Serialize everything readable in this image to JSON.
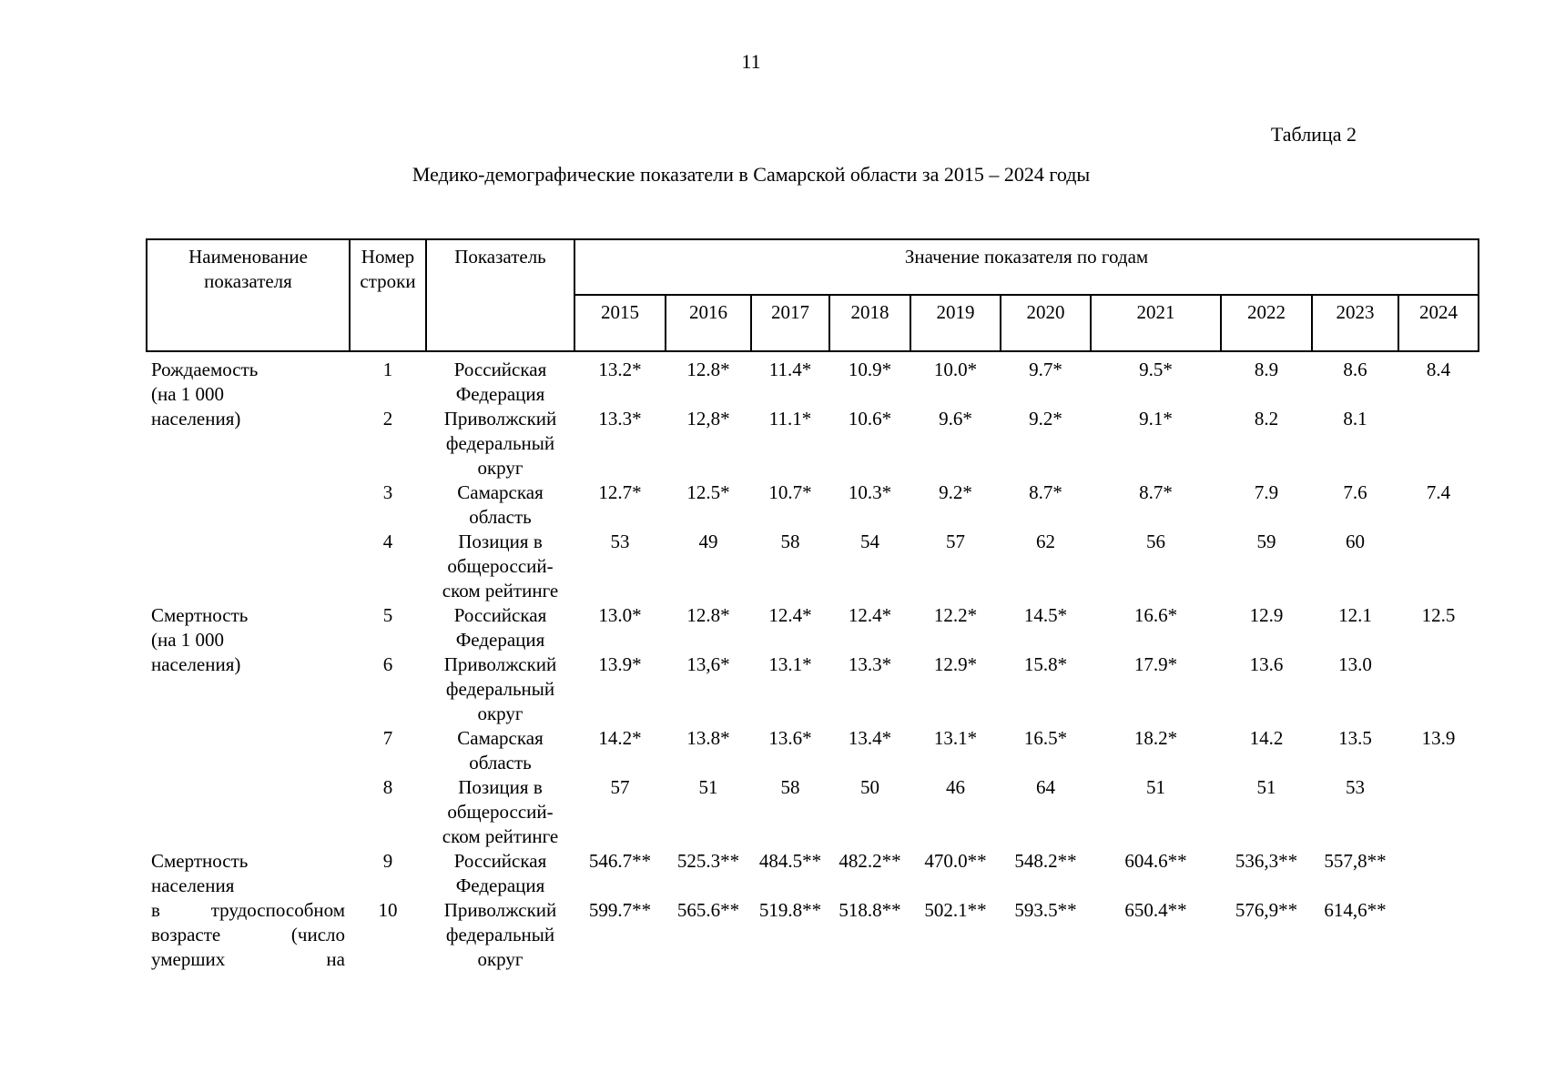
{
  "page": {
    "number": "11",
    "table_label": "Таблица 2",
    "title": "Медико-демографические показатели в Самарской области за 2015 – 2024 годы"
  },
  "table": {
    "headers": {
      "name_col": "Наименование\nпоказателя",
      "row_number_col": "Номер\nстроки",
      "indicator_col": "Показатель",
      "years_group": "Значение показателя по годам",
      "years": [
        "2015",
        "2016",
        "2017",
        "2018",
        "2019",
        "2020",
        "2021",
        "2022",
        "2023",
        "2024"
      ]
    },
    "groups": [
      {
        "label": "Рождаемость\n(на 1 000\nнаселения)",
        "justify": false,
        "rows": [
          {
            "num": "1",
            "indicator": "Российская\nФедерация",
            "values": [
              "13.2*",
              "12.8*",
              "11.4*",
              "10.9*",
              "10.0*",
              "9.7*",
              "9.5*",
              "8.9",
              "8.6",
              "8.4"
            ]
          },
          {
            "num": "2",
            "indicator": "Приволжский\nфедеральный\nокруг",
            "values": [
              "13.3*",
              "12,8*",
              "11.1*",
              "10.6*",
              "9.6*",
              "9.2*",
              "9.1*",
              "8.2",
              "8.1",
              ""
            ]
          },
          {
            "num": "3",
            "indicator": "Самарская\nобласть",
            "values": [
              "12.7*",
              "12.5*",
              "10.7*",
              "10.3*",
              "9.2*",
              "8.7*",
              "8.7*",
              "7.9",
              "7.6",
              "7.4"
            ]
          },
          {
            "num": "4",
            "indicator": "Позиция в\nобщероссий-\nском рейтинге",
            "values": [
              "53",
              "49",
              "58",
              "54",
              "57",
              "62",
              "56",
              "59",
              "60",
              ""
            ]
          }
        ]
      },
      {
        "label": "Смертность\n(на 1 000\nнаселения)",
        "justify": false,
        "rows": [
          {
            "num": "5",
            "indicator": "Российская\nФедерация",
            "values": [
              "13.0*",
              "12.8*",
              "12.4*",
              "12.4*",
              "12.2*",
              "14.5*",
              "16.6*",
              "12.9",
              "12.1",
              "12.5"
            ]
          },
          {
            "num": "6",
            "indicator": "Приволжский\nфедеральный\nокруг",
            "values": [
              "13.9*",
              "13,6*",
              "13.1*",
              "13.3*",
              "12.9*",
              "15.8*",
              "17.9*",
              "13.6",
              "13.0",
              ""
            ]
          },
          {
            "num": "7",
            "indicator": "Самарская\nобласть",
            "values": [
              "14.2*",
              "13.8*",
              "13.6*",
              "13.4*",
              "13.1*",
              "16.5*",
              "18.2*",
              "14.2",
              "13.5",
              "13.9"
            ]
          },
          {
            "num": "8",
            "indicator": "Позиция в\nобщероссий-\nском рейтинге",
            "values": [
              "57",
              "51",
              "58",
              "50",
              "46",
              "64",
              "51",
              "51",
              "53",
              ""
            ]
          }
        ]
      },
      {
        "label": "Смертность\nнаселения\nв трудоспособном\nвозрасте (число\nумерших на",
        "justify": true,
        "rows": [
          {
            "num": "9",
            "indicator": "Российская\nФедерация",
            "values": [
              "546.7**",
              "525.3**",
              "484.5**",
              "482.2**",
              "470.0**",
              "548.2**",
              "604.6**",
              "536,3**",
              "557,8**",
              ""
            ]
          },
          {
            "num": "10",
            "indicator": "Приволжский\nфедеральный\nокруг",
            "values": [
              "599.7**",
              "565.6**",
              "519.8**",
              "518.8**",
              "502.1**",
              "593.5**",
              "650.4**",
              "576,9**",
              "614,6**",
              ""
            ]
          }
        ]
      }
    ]
  }
}
